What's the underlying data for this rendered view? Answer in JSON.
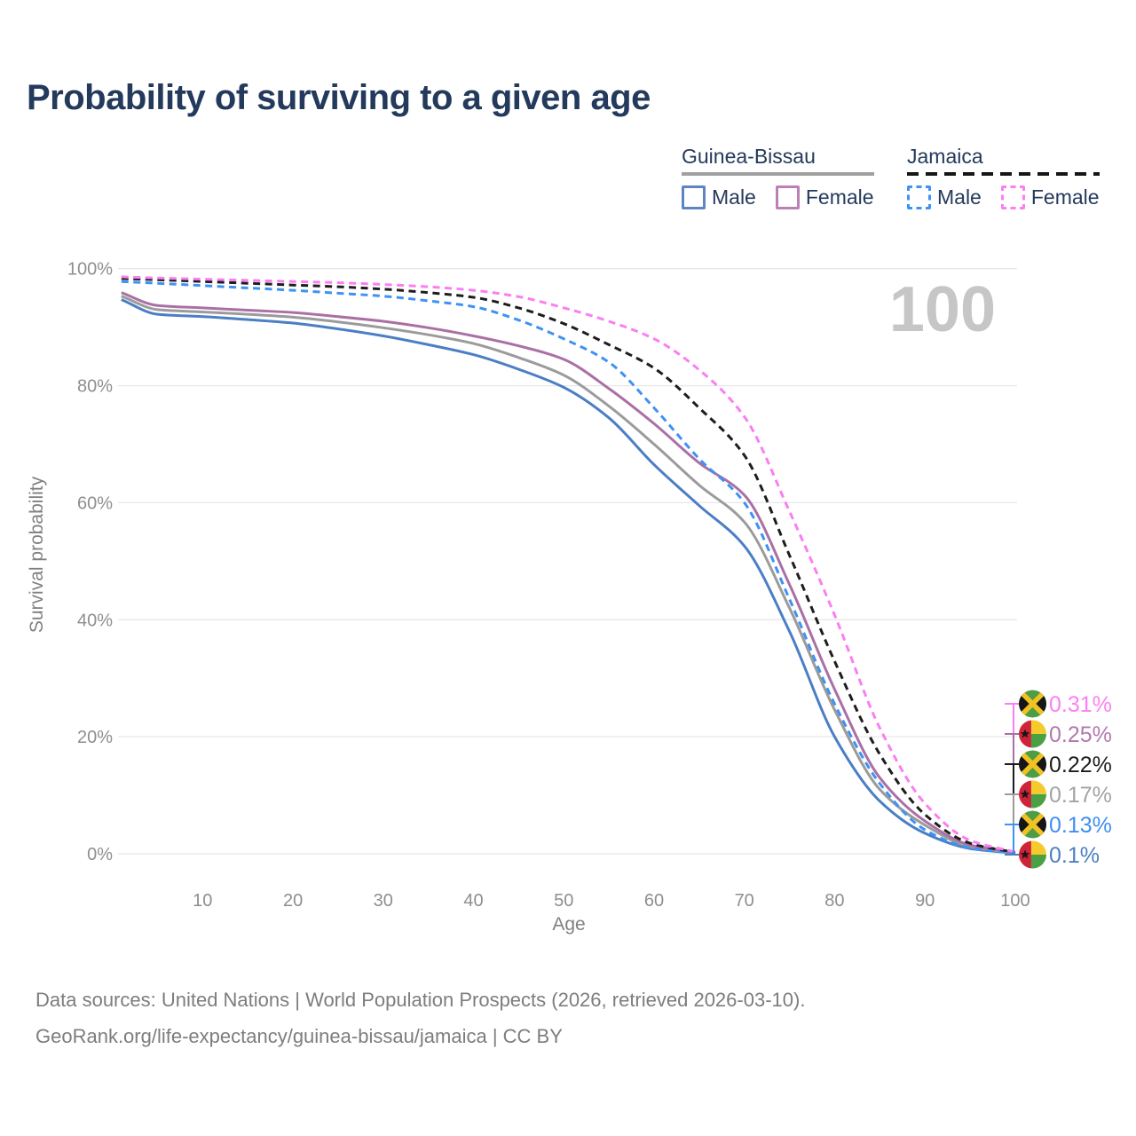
{
  "title": "Probability of surviving to a given age",
  "watermark": "100",
  "legend": {
    "groups": [
      {
        "label": "Guinea-Bissau",
        "line_style": "solid",
        "line_color": "#a0a0a0",
        "items": [
          {
            "label": "Male",
            "swatch_color": "#5d85c3",
            "swatch_style": "solid"
          },
          {
            "label": "Female",
            "swatch_color": "#bb80b6",
            "swatch_style": "solid"
          }
        ]
      },
      {
        "label": "Jamaica",
        "line_style": "dashed",
        "line_color": "#161616",
        "items": [
          {
            "label": "Male",
            "swatch_color": "#3e92f5",
            "swatch_style": "dashed"
          },
          {
            "label": "Female",
            "swatch_color": "#fb7ef2",
            "swatch_style": "dashed"
          }
        ]
      }
    ]
  },
  "chart_data": {
    "type": "line",
    "title": "Probability of surviving to a given age",
    "xlabel": "Age",
    "ylabel": "Survival probability",
    "xlim": [
      1,
      100
    ],
    "ylim": [
      0,
      100
    ],
    "grid": "horizontal",
    "xticks": [
      10,
      20,
      30,
      40,
      50,
      60,
      70,
      80,
      90,
      100
    ],
    "ytick_values": [
      0,
      20,
      40,
      60,
      80,
      100
    ],
    "ytick_labels": [
      "0%",
      "20%",
      "40%",
      "60%",
      "80%",
      "100%"
    ],
    "ages": [
      1,
      5,
      10,
      15,
      20,
      25,
      30,
      35,
      40,
      45,
      50,
      55,
      60,
      65,
      70,
      75,
      80,
      85,
      90,
      95,
      100
    ],
    "series": [
      {
        "id": "gb-male",
        "country": "Guinea-Bissau",
        "sex": "Male",
        "color": "#4b7ec5",
        "dash": null,
        "end_label": "0.1%",
        "end_label_color": "#4c7fc0",
        "flag": "guinea-bissau",
        "values": [
          94.7,
          92.2,
          91.8,
          91.3,
          90.7,
          89.7,
          88.5,
          87.0,
          85.3,
          82.8,
          79.7,
          74.5,
          66.5,
          59.5,
          52.6,
          38.0,
          20.0,
          9.0,
          3.5,
          0.9,
          0.1
        ]
      },
      {
        "id": "gb-total",
        "country": "Guinea-Bissau",
        "sex": "Both",
        "color": "#9b9b9b",
        "dash": null,
        "end_label": "0.17%",
        "end_label_color": "#a3a3a3",
        "flag": "guinea-bissau",
        "values": [
          95.3,
          93.0,
          92.6,
          92.2,
          91.7,
          90.9,
          89.9,
          88.7,
          87.2,
          84.8,
          81.8,
          76.5,
          70.0,
          63.0,
          56.7,
          42.0,
          24.6,
          11.0,
          4.9,
          1.2,
          0.17
        ]
      },
      {
        "id": "gb-female",
        "country": "Guinea-Bissau",
        "sex": "Female",
        "color": "#aa70a6",
        "dash": null,
        "end_label": "0.25%",
        "end_label_color": "#b279ad",
        "flag": "guinea-bissau",
        "values": [
          95.9,
          93.7,
          93.3,
          92.9,
          92.5,
          91.8,
          91.0,
          89.9,
          88.5,
          86.8,
          84.5,
          79.5,
          73.5,
          66.8,
          61.3,
          46.0,
          28.1,
          13.0,
          5.6,
          1.5,
          0.25
        ]
      },
      {
        "id": "jm-male",
        "country": "Jamaica",
        "sex": "Male",
        "color": "#3e92f5",
        "dash": "8,5.5",
        "end_label": "0.13%",
        "end_label_color": "#3e8ff2",
        "flag": "jamaica",
        "values": [
          97.8,
          97.5,
          97.1,
          96.7,
          96.3,
          95.8,
          95.3,
          94.5,
          93.5,
          91.2,
          88.0,
          84.0,
          76.2,
          67.5,
          60.0,
          43.5,
          25.6,
          12.0,
          4.1,
          1.0,
          0.13
        ]
      },
      {
        "id": "jm-total",
        "country": "Jamaica",
        "sex": "Both",
        "color": "#1d1d1d",
        "dash": "8,5.5",
        "end_label": "0.22%",
        "end_label_color": "#1d1d1d",
        "flag": "jamaica",
        "values": [
          98.3,
          98.1,
          97.8,
          97.5,
          97.2,
          96.9,
          96.5,
          95.9,
          95.1,
          93.3,
          90.6,
          87.0,
          83.0,
          76.2,
          68.1,
          51.0,
          32.9,
          17.0,
          6.7,
          1.8,
          0.22
        ]
      },
      {
        "id": "jm-female",
        "country": "Jamaica",
        "sex": "Female",
        "color": "#fb7ef2",
        "dash": "8,5.5",
        "end_label": "0.31%",
        "end_label_color": "#fe7ef3",
        "flag": "jamaica",
        "values": [
          98.6,
          98.4,
          98.2,
          98.0,
          97.8,
          97.6,
          97.3,
          96.9,
          96.3,
          95.2,
          93.3,
          91.0,
          88.0,
          82.7,
          74.7,
          58.5,
          40.8,
          21.5,
          8.6,
          2.3,
          0.31
        ]
      }
    ],
    "flag_colors": {
      "jamaica": {
        "green": "#4e9c44",
        "black": "#161616",
        "gold": "#f1c322"
      },
      "guinea-bissau": {
        "red": "#cf2339",
        "yellow": "#f5ca2c",
        "green": "#4ba044",
        "star": "#161616"
      }
    }
  },
  "footer": {
    "line1": "Data sources: United Nations | World Population Prospects (2026, retrieved 2026-03-10).",
    "line2": "GeoRank.org/life-expectancy/guinea-bissau/jamaica | CC BY"
  }
}
